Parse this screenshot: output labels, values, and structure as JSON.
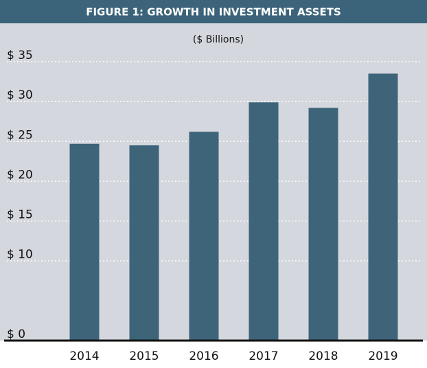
{
  "chart_data": {
    "type": "bar",
    "title": "FIGURE 1: GROWTH IN INVESTMENT ASSETS",
    "subtitle": "($ Billions)",
    "categories": [
      "2014",
      "2015",
      "2016",
      "2017",
      "2018",
      "2019"
    ],
    "values": [
      24.7,
      24.5,
      26.2,
      29.9,
      29.2,
      33.5
    ],
    "color": "#3d6479",
    "ylim": [
      0,
      35
    ],
    "yticks": [
      {
        "value": 0,
        "label": "$  0"
      },
      {
        "value": 10,
        "label": "$ 10"
      },
      {
        "value": 15,
        "label": "$ 15"
      },
      {
        "value": 20,
        "label": "$ 20"
      },
      {
        "value": 25,
        "label": "$ 25"
      },
      {
        "value": 30,
        "label": "$ 30"
      },
      {
        "value": 35,
        "label": "$ 35"
      }
    ],
    "grid": true
  }
}
